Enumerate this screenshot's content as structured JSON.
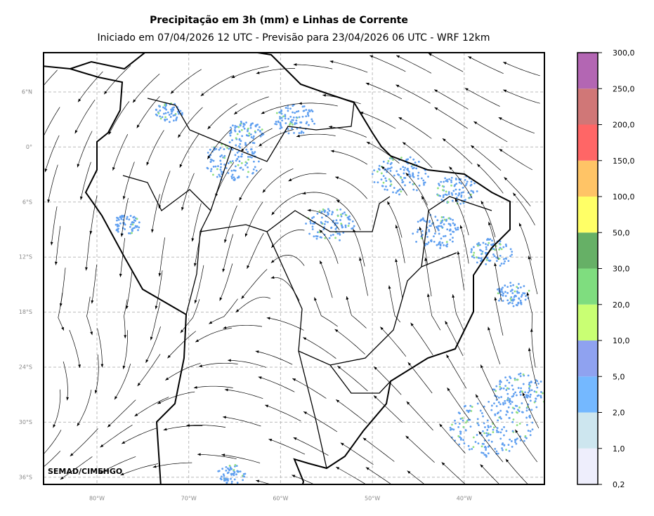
{
  "header": {
    "title": "Precipitação em 3h (mm) e Linhas de Corrente",
    "subtitle": "Iniciado em 07/04/2026 12 UTC - Previsão para 23/04/2026 06 UTC - WRF 12km"
  },
  "map": {
    "lat_labels": [
      "6°N",
      "0°",
      "6°S",
      "12°S",
      "18°S",
      "24°S",
      "30°S",
      "36°S"
    ],
    "lon_labels": [
      "80°W",
      "70°W",
      "60°W",
      "50°W",
      "40°W"
    ],
    "credit": "SEMAD/CIMEHGO"
  },
  "colorbar": {
    "labels": [
      "0,2",
      "1,0",
      "2,0",
      "5,0",
      "10,0",
      "20,0",
      "30,0",
      "50,0",
      "100,0",
      "150,0",
      "200,0",
      "250,0",
      "300,0"
    ],
    "colors": [
      "#eeeefc",
      "#cde6ef",
      "#74b8ff",
      "#8fa2f0",
      "#c9ff73",
      "#7fdd7f",
      "#66b066",
      "#ffff66",
      "#ffc466",
      "#ff6666",
      "#d07777",
      "#b366b3"
    ]
  }
}
